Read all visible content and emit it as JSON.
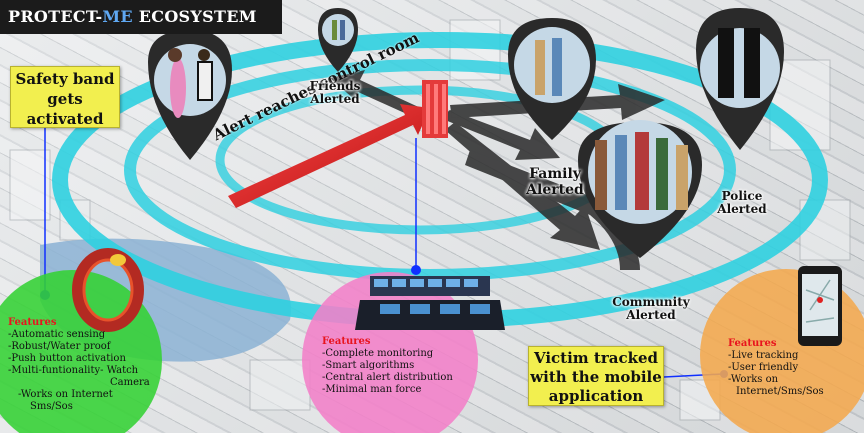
{
  "title": {
    "main": "PROTECT-",
    "accent": "ME",
    "rest": " ECOSYSTEM"
  },
  "safety_band": {
    "label": "Safety band gets activated"
  },
  "alert_arrow": {
    "label": "Alert reaches control room"
  },
  "nodes": {
    "friends": "Friends Alerted",
    "family": "Family Alerted",
    "police": "Police Alerted",
    "community": "Community Alerted"
  },
  "victim_box": {
    "label": "Victim tracked with the mobile application"
  },
  "features_band": {
    "heading": "Features",
    "items": [
      "-Automatic sensing",
      "-Robust/Water proof",
      "-Push button activation",
      "-Multi-funtionality- Watch",
      "Camera",
      "-Works on Internet",
      "Sms/Sos"
    ]
  },
  "features_control": {
    "heading": "Features",
    "items": [
      "-Complete monitoring",
      "-Smart algorithms",
      "-Central alert distribution",
      "-Minimal man force"
    ]
  },
  "features_app": {
    "heading": "Features",
    "items": [
      "-Live tracking",
      "-User friendly",
      "-Works on",
      "Internet/Sms/Sos"
    ]
  },
  "colors": {
    "ring": "#2fd0e0",
    "green_circle": "#33d233",
    "pink_circle": "#f27fc8",
    "orange_circle": "#f4a94d",
    "yellow_box": "#f2ef4f",
    "red_arrow": "#e01818",
    "feature_heading": "#e8141e"
  }
}
